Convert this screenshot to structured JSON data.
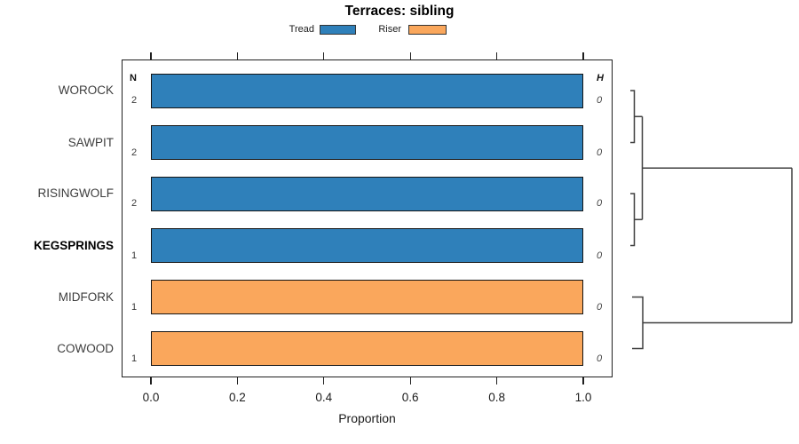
{
  "title": "Terraces: sibling",
  "legend": {
    "items": [
      {
        "label": "Tread",
        "color": "#2F80BA"
      },
      {
        "label": "Riser",
        "color": "#FAA75C"
      }
    ]
  },
  "chart_data": {
    "type": "bar",
    "orientation": "horizontal",
    "title": "Terraces: sibling",
    "xlabel": "Proportion",
    "xlim": [
      0.0,
      1.0
    ],
    "xtick_labels": [
      "0.0",
      "0.2",
      "0.4",
      "0.6",
      "0.8",
      "1.0"
    ],
    "grid": false,
    "legend_position": "top",
    "categories": [
      "WOROCK",
      "SAWPIT",
      "RISINGWOLF",
      "KEGSPRINGS",
      "MIDFORK",
      "COWOOD"
    ],
    "bold_category": "KEGSPRINGS",
    "series": [
      {
        "name": "Tread",
        "color": "#2F80BA",
        "values": [
          1.0,
          1.0,
          1.0,
          1.0,
          0.0,
          0.0
        ]
      },
      {
        "name": "Riser",
        "color": "#FAA75C",
        "values": [
          0.0,
          0.0,
          0.0,
          0.0,
          1.0,
          1.0
        ]
      }
    ],
    "bar_series_by_category": [
      "Tread",
      "Tread",
      "Tread",
      "Tread",
      "Riser",
      "Riser"
    ],
    "n_column": {
      "header": "N",
      "values": [
        "2",
        "2",
        "2",
        "1",
        "1",
        "1"
      ]
    },
    "h_column": {
      "header": "H",
      "values": [
        "0",
        "0",
        "0",
        "0",
        "0",
        "0"
      ]
    },
    "dendrogram": {
      "side": "right",
      "topology": "(((WOROCK,SAWPIT),(RISINGWOLF,KEGSPRINGS)),(MIDFORK,COWOOD))",
      "line_color": "#3f3f3f"
    }
  }
}
